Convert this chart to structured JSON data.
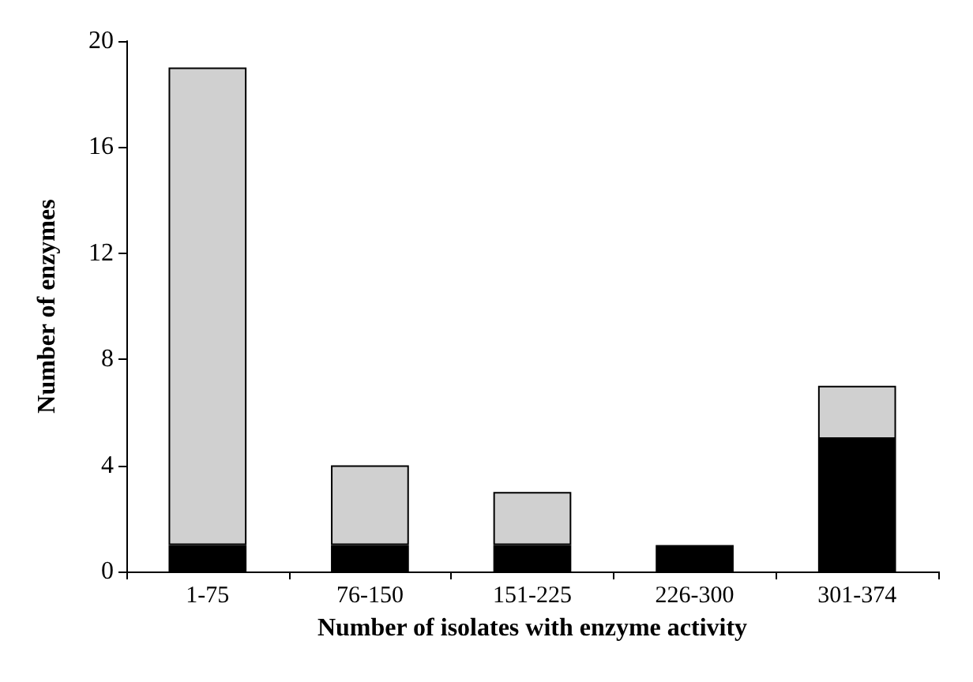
{
  "chart_data": {
    "type": "bar",
    "stacked": true,
    "xlabel": "Number of isolates with enzyme activity",
    "ylabel": "Number of enzymes",
    "categories": [
      "1-75",
      "76-150",
      "151-225",
      "226-300",
      "301-374"
    ],
    "series": [
      {
        "color": "#000000",
        "values": [
          1,
          1,
          1,
          1,
          5
        ]
      },
      {
        "color": "#d0d0d0",
        "values": [
          18,
          3,
          2,
          0,
          2
        ]
      }
    ],
    "ylim": [
      0,
      20
    ],
    "yticks": [
      0,
      4,
      8,
      12,
      16,
      20
    ],
    "grid": false
  }
}
